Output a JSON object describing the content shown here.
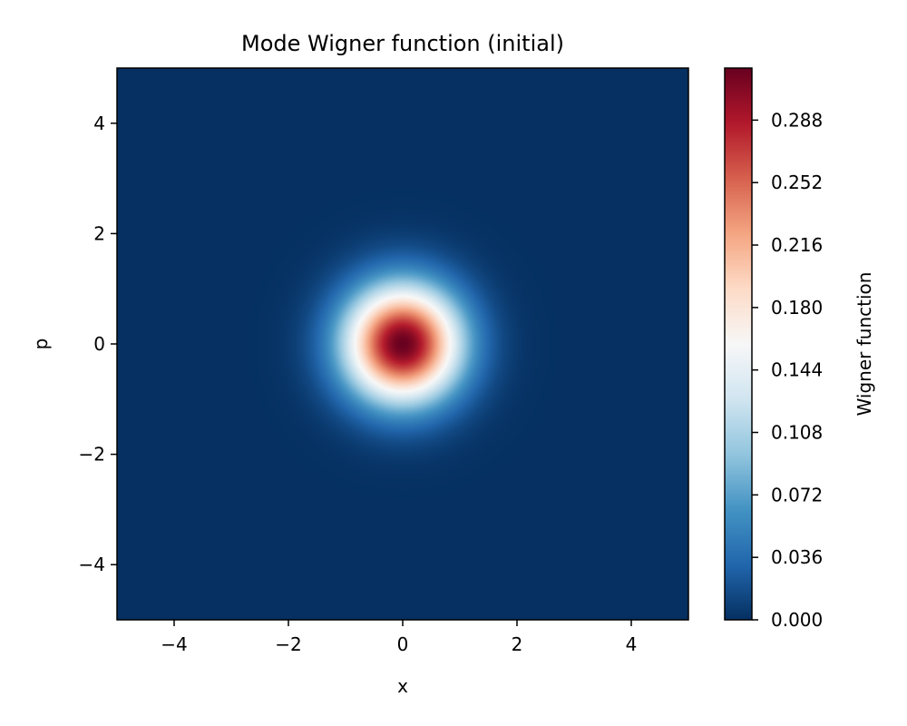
{
  "chart_data": {
    "type": "heatmap",
    "title": "Mode Wigner function (initial)",
    "xlabel": "x",
    "ylabel": "p",
    "xlim": [
      -5,
      5
    ],
    "ylim": [
      -5,
      5
    ],
    "x_ticks": [
      -4,
      -2,
      0,
      2,
      4
    ],
    "y_ticks": [
      -4,
      -2,
      0,
      2,
      4
    ],
    "x_tick_labels": [
      "−4",
      "−2",
      "0",
      "2",
      "4"
    ],
    "y_tick_labels": [
      "−4",
      "−2",
      "0",
      "2",
      "4"
    ],
    "colormap": "RdBu_r",
    "colorbar": {
      "label": "Wigner function",
      "range": [
        0.0,
        0.318
      ],
      "ticks": [
        0.0,
        0.036,
        0.072,
        0.108,
        0.144,
        0.18,
        0.216,
        0.252,
        0.288
      ],
      "tick_labels": [
        "0.000",
        "0.036",
        "0.072",
        "0.108",
        "0.144",
        "0.180",
        "0.216",
        "0.252",
        "0.288"
      ]
    },
    "field": {
      "function": "W(x,p) = (1/π) · exp(-(x² + p²))",
      "center": [
        0,
        0
      ],
      "peak": 0.318
    },
    "grid": false
  }
}
